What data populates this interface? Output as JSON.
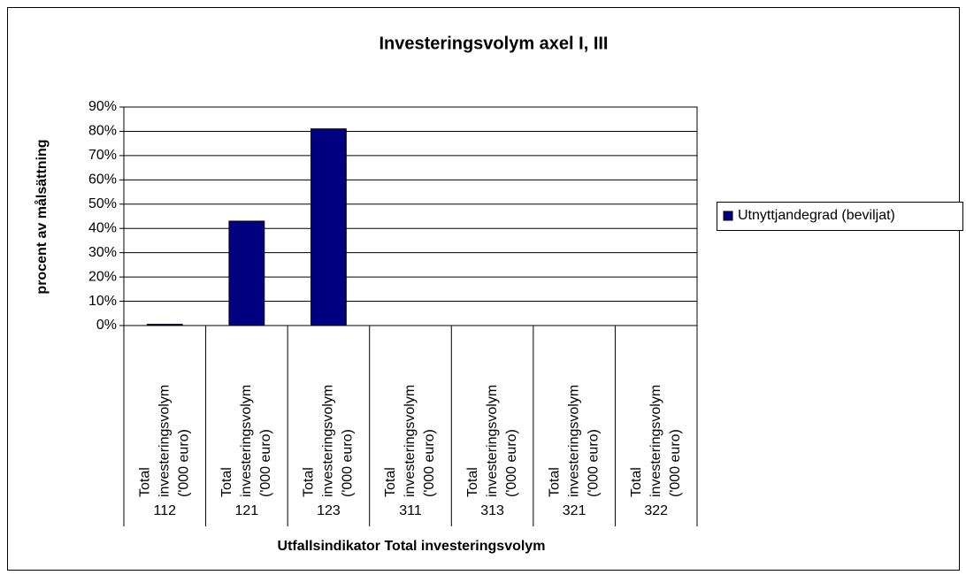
{
  "chart_data": {
    "type": "bar",
    "title": "Investeringsvolym axel I, III",
    "y_axis_label": "procent av målsättning",
    "x_axis_label": "Utfallsindikator Total investeringsvolym",
    "categories": [
      "112",
      "121",
      "123",
      "311",
      "313",
      "321",
      "322"
    ],
    "category_descriptions": [
      [
        "Total",
        "investeringsvolym",
        "('000 euro)"
      ],
      [
        "Total",
        "investeringsvolym",
        "('000 euro)"
      ],
      [
        "Total",
        "investeringsvolym",
        "('000 euro)"
      ],
      [
        "Total",
        "investeringsvolym",
        "('000 euro)"
      ],
      [
        "Total",
        "investeringsvolym",
        "('000 euro)"
      ],
      [
        "Total",
        "investeringsvolym",
        "('000 euro)"
      ],
      [
        "Total",
        "investeringsvolym",
        "('000 euro)"
      ]
    ],
    "series": [
      {
        "name": "Utnyttjandegrad (beviljat)",
        "color": "#000080",
        "values": [
          0.5,
          43,
          81,
          0,
          0,
          0,
          0
        ]
      }
    ],
    "ylim": [
      0,
      90
    ],
    "yticks": [
      {
        "value": 0,
        "label": "0%"
      },
      {
        "value": 10,
        "label": "10%"
      },
      {
        "value": 20,
        "label": "20%"
      },
      {
        "value": 30,
        "label": "30%"
      },
      {
        "value": 40,
        "label": "40%"
      },
      {
        "value": 50,
        "label": "50%"
      },
      {
        "value": 60,
        "label": "60%"
      },
      {
        "value": 70,
        "label": "70%"
      },
      {
        "value": 80,
        "label": "80%"
      },
      {
        "value": 90,
        "label": "90%"
      }
    ],
    "grid": true,
    "legend": "right"
  }
}
